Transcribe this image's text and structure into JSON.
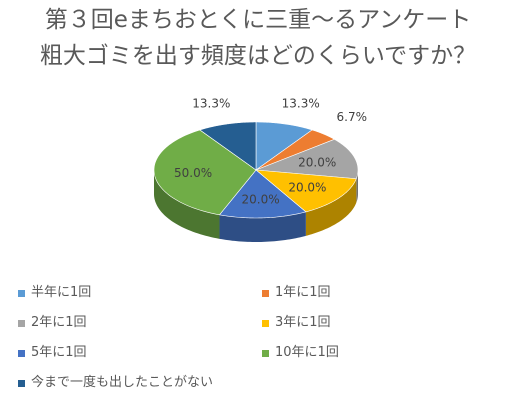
{
  "chart_data": {
    "type": "pie",
    "title_lines": [
      "第３回eまちおとくに三重～るアンケート",
      "粗大ゴミを出す頻度はどのくらいですか？"
    ],
    "categories": [
      "半年に1回",
      "1年に1回",
      "2年に1回",
      "3年に1回",
      "5年に1回",
      "10年に1回",
      "今まで一度も出したことがない"
    ],
    "values": [
      13.3,
      6.7,
      20.0,
      20.0,
      20.0,
      50.0,
      13.3
    ],
    "labels": [
      "13.3%",
      "6.7%",
      "20.0%",
      "20.0%",
      "20.0%",
      "50.0%",
      "13.3%"
    ],
    "colors": [
      "#5B9BD5",
      "#ED7D31",
      "#A5A5A5",
      "#FFC000",
      "#4472C4",
      "#70AD47",
      "#255E91"
    ],
    "legend_position": "bottom"
  }
}
